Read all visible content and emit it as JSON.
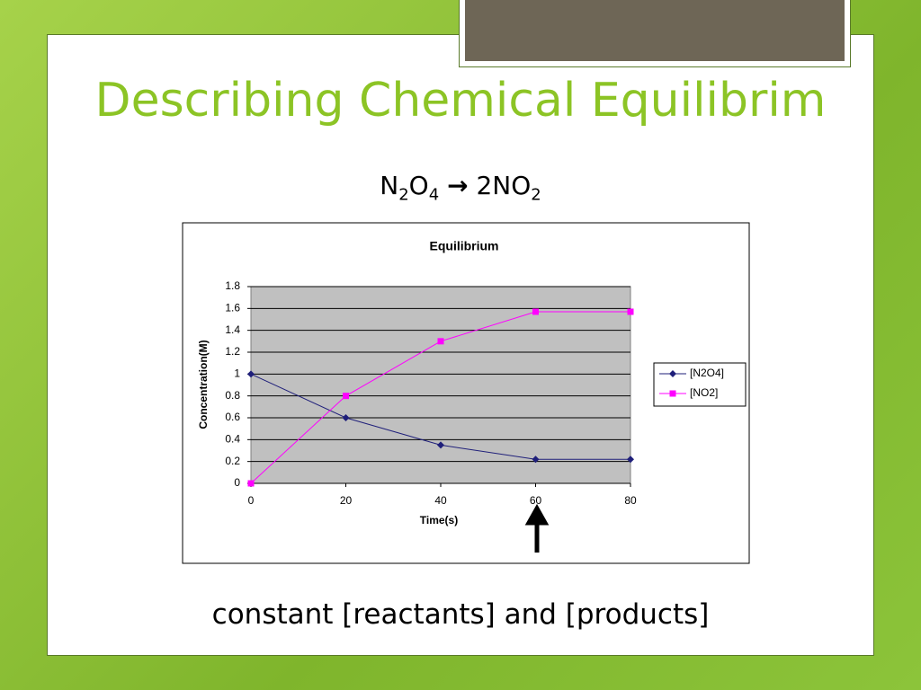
{
  "slide": {
    "title": "Describing Chemical Equilibrim",
    "equation": [
      "N",
      "2",
      "O",
      "4",
      "→",
      "2NO",
      "2"
    ],
    "caption": "constant [reactants] and [products]"
  },
  "chart_data": {
    "type": "line",
    "title": "Equilibrium",
    "x_label": "Time(s)",
    "y_label": "Concentration(M)",
    "x": [
      0,
      20,
      40,
      60,
      80
    ],
    "series": [
      {
        "name": "[N2O4]",
        "color": "#1f1f7a",
        "marker": "diamond",
        "values": [
          1,
          0.6,
          0.35,
          0.22,
          0.22
        ]
      },
      {
        "name": "[NO2]",
        "color": "#ff00ff",
        "marker": "square",
        "values": [
          0,
          0.8,
          1.3,
          1.57,
          1.57
        ]
      }
    ],
    "xlim": [
      0,
      80
    ],
    "xticks": [
      0,
      20,
      40,
      60,
      80
    ],
    "ylim": [
      0,
      1.8
    ],
    "yticks": [
      0,
      0.2,
      0.4,
      0.6,
      0.8,
      1,
      1.2,
      1.4,
      1.6,
      1.8
    ],
    "grid": true,
    "legend": "right"
  }
}
